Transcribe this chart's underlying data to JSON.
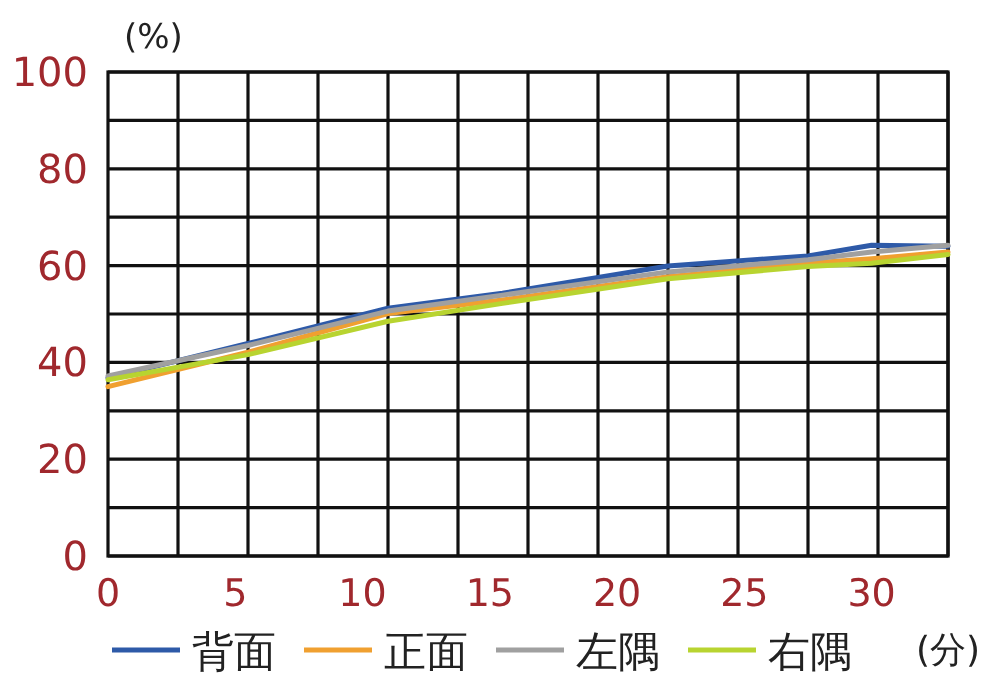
{
  "chart_data": {
    "type": "line",
    "xlabel": "(分)",
    "ylabel": "(%)",
    "x": [
      0,
      5.5,
      11,
      15.5,
      22,
      27.5,
      30,
      33
    ],
    "series": [
      {
        "name": "背面",
        "color": "#2e5aa8",
        "values": [
          36.8,
          43.9,
          51.2,
          54.3,
          59.9,
          62,
          64.2,
          64
        ]
      },
      {
        "name": "正面",
        "color": "#f0a030",
        "values": [
          35,
          42.1,
          50.1,
          52.9,
          57.7,
          60.5,
          61.4,
          62.8
        ]
      },
      {
        "name": "左隅",
        "color": "#a0a0a0",
        "values": [
          37.2,
          43.5,
          50.6,
          53.9,
          58.7,
          61.2,
          62.8,
          64.2
        ]
      },
      {
        "name": "右隅",
        "color": "#b8d430",
        "values": [
          36.4,
          41.6,
          48.5,
          52.2,
          57.3,
          59.8,
          60.5,
          62.3
        ]
      }
    ],
    "xlim": [
      0,
      33
    ],
    "ylim": [
      0,
      100
    ],
    "xticks": [
      0,
      5,
      10,
      15,
      20,
      25,
      30,
      {
        "value": 2.75,
        "label": null
      },
      {
        "value": 5.5,
        "label": null
      },
      {
        "value": 8.25,
        "label": null
      },
      {
        "value": 11,
        "label": null
      },
      {
        "value": 13.75,
        "label": null
      },
      {
        "value": 16.5,
        "label": null
      },
      {
        "value": 19.25,
        "label": null
      },
      {
        "value": 22,
        "label": null
      },
      {
        "value": 24.75,
        "label": null
      },
      {
        "value": 27.5,
        "label": null
      },
      {
        "value": 30.25,
        "label": null
      },
      {
        "value": 33,
        "label": null
      }
    ],
    "yticks": [
      0,
      20,
      40,
      60,
      80,
      100,
      {
        "value": 10,
        "label": null
      },
      {
        "value": 30,
        "label": null
      },
      {
        "value": 50,
        "label": null
      },
      {
        "value": 70,
        "label": null
      },
      {
        "value": 90,
        "label": null
      }
    ],
    "grid": true,
    "legend": "bottom",
    "marker": "none",
    "line_style": "solid"
  }
}
